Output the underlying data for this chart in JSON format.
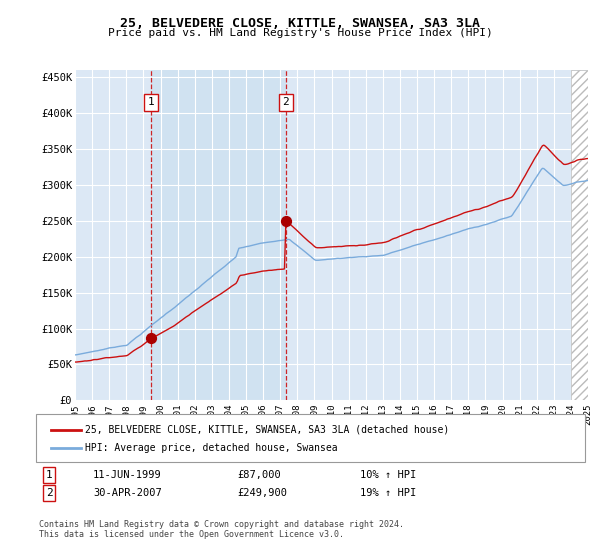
{
  "title": "25, BELVEDERE CLOSE, KITTLE, SWANSEA, SA3 3LA",
  "subtitle": "Price paid vs. HM Land Registry's House Price Index (HPI)",
  "ylim": [
    0,
    460000
  ],
  "yticks": [
    0,
    50000,
    100000,
    150000,
    200000,
    250000,
    300000,
    350000,
    400000,
    450000
  ],
  "ytick_labels": [
    "£0",
    "£50K",
    "£100K",
    "£150K",
    "£200K",
    "£250K",
    "£300K",
    "£350K",
    "£400K",
    "£450K"
  ],
  "background_color": "#ffffff",
  "plot_bg_color": "#dce8f5",
  "grid_color": "#ffffff",
  "shade_color": "#dce8f5",
  "sale1_date": 1999.44,
  "sale1_price": 87000,
  "sale1_label": "1",
  "sale1_text": "11-JUN-1999",
  "sale1_amount": "£87,000",
  "sale1_hpi": "10% ↑ HPI",
  "sale2_date": 2007.33,
  "sale2_price": 249900,
  "sale2_label": "2",
  "sale2_text": "30-APR-2007",
  "sale2_amount": "£249,900",
  "sale2_hpi": "19% ↑ HPI",
  "hpi_line_color": "#7aabdc",
  "price_line_color": "#cc1111",
  "sale_marker_color": "#aa0000",
  "vline_color": "#cc1111",
  "legend_label_price": "25, BELVEDERE CLOSE, KITTLE, SWANSEA, SA3 3LA (detached house)",
  "legend_label_hpi": "HPI: Average price, detached house, Swansea",
  "footer": "Contains HM Land Registry data © Crown copyright and database right 2024.\nThis data is licensed under the Open Government Licence v3.0.",
  "xstart": 1995,
  "xend": 2025,
  "xticks": [
    1995,
    1996,
    1997,
    1998,
    1999,
    2000,
    2001,
    2002,
    2003,
    2004,
    2005,
    2006,
    2007,
    2008,
    2009,
    2010,
    2011,
    2012,
    2013,
    2014,
    2015,
    2016,
    2017,
    2018,
    2019,
    2020,
    2021,
    2022,
    2023,
    2024,
    2025
  ],
  "hatch_start": 2024.0,
  "hatch_color": "#bbbbbb",
  "marker_size": 50
}
